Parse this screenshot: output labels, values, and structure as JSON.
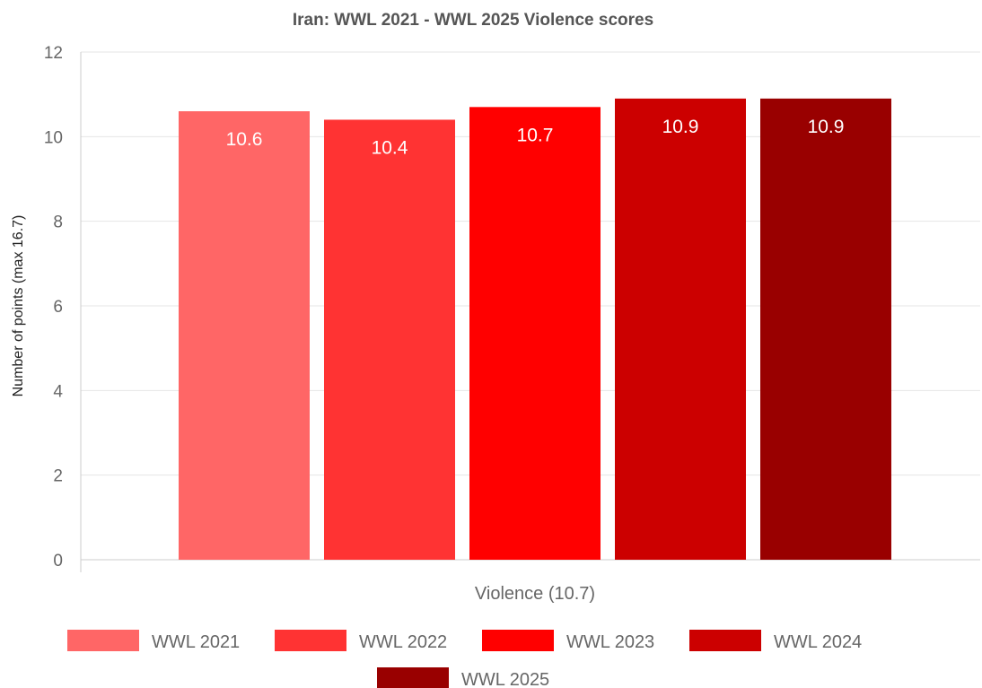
{
  "chart_data": {
    "type": "bar",
    "title": "Iran: WWL 2021 - WWL 2025 Violence scores",
    "ylabel": "Number of points (max 16.7)",
    "categories": [
      "Violence (10.7)"
    ],
    "ylim": [
      0,
      12
    ],
    "yticks": [
      0,
      2,
      4,
      6,
      8,
      10,
      12
    ],
    "grid": true,
    "legend_position": "bottom",
    "series": [
      {
        "name": "WWL 2021",
        "values": [
          10.6
        ],
        "label": "10.6",
        "color": "#ff6666"
      },
      {
        "name": "WWL 2022",
        "values": [
          10.4
        ],
        "label": "10.4",
        "color": "#ff3333"
      },
      {
        "name": "WWL 2023",
        "values": [
          10.7
        ],
        "label": "10.7",
        "color": "#ff0000"
      },
      {
        "name": "WWL 2024",
        "values": [
          10.9
        ],
        "label": "10.9",
        "color": "#cc0000"
      },
      {
        "name": "WWL 2025",
        "values": [
          10.9
        ],
        "label": "10.9",
        "color": "#990000"
      }
    ]
  }
}
